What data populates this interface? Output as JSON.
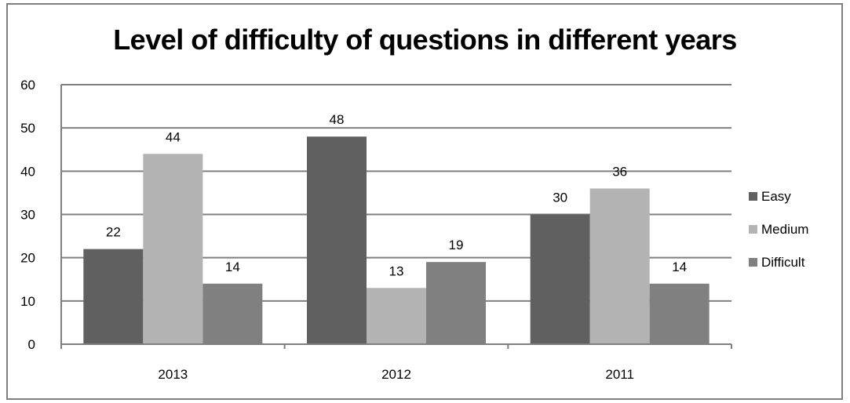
{
  "chart_data": {
    "type": "bar",
    "title": "Level of difficulty of questions in different years",
    "categories": [
      "2013",
      "2012",
      "2011"
    ],
    "series": [
      {
        "name": "Easy",
        "values": [
          22,
          48,
          30
        ],
        "color": "#606060"
      },
      {
        "name": "Medium",
        "values": [
          44,
          13,
          36
        ],
        "color": "#b3b3b3"
      },
      {
        "name": "Difficult",
        "values": [
          14,
          19,
          14
        ],
        "color": "#808080"
      }
    ],
    "ylim": [
      0,
      60
    ],
    "yticks": [
      "0",
      "10",
      "20",
      "30",
      "40",
      "50",
      "60"
    ],
    "grid": true,
    "legend_position": "right",
    "data_labels": true
  }
}
